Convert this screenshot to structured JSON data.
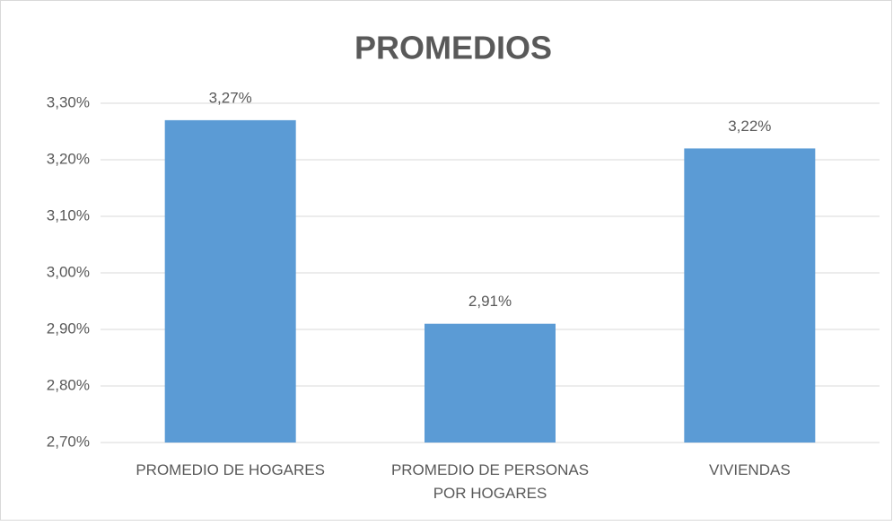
{
  "chart_data": {
    "type": "bar",
    "title": "PROMEDIOS",
    "categories": [
      "PROMEDIO DE HOGARES",
      "PROMEDIO DE PERSONAS POR HOGARES",
      "VIVIENDAS"
    ],
    "values": [
      3.27,
      2.91,
      3.22
    ],
    "value_labels": [
      "3,27%",
      "2,91%",
      "3,22%"
    ],
    "color": "#5b9bd5",
    "ylim": [
      2.7,
      3.3
    ],
    "yticks": [
      {
        "value": 2.7,
        "label": "2,70%"
      },
      {
        "value": 2.8,
        "label": "2,80%"
      },
      {
        "value": 2.9,
        "label": "2,90%"
      },
      {
        "value": 3.0,
        "label": "3,00%"
      },
      {
        "value": 3.1,
        "label": "3,10%"
      },
      {
        "value": 3.2,
        "label": "3,20%"
      },
      {
        "value": 3.3,
        "label": "3,30%"
      }
    ],
    "grid": true
  }
}
